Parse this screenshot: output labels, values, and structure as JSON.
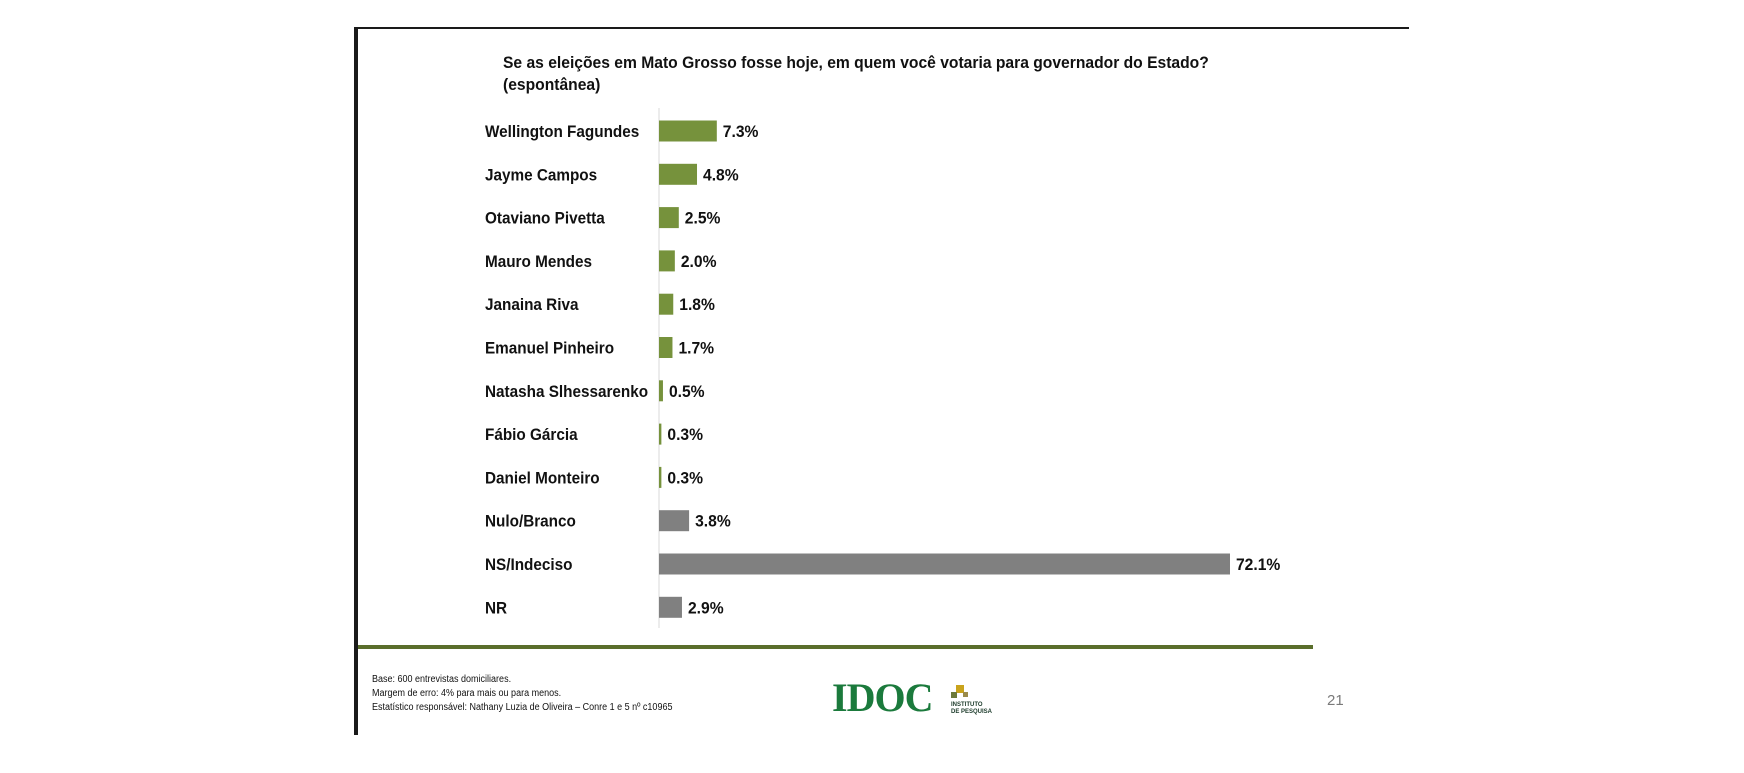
{
  "slide": {
    "page_number": "21",
    "footnotes": [
      "Base: 600 entrevistas domiciliares.",
      "Margem de erro: 4% para mais ou para menos.",
      "Estatístico responsável: Nathany Luzia de Oliveira – Conre 1 e 5 nº c10965"
    ],
    "logo": {
      "word": "IDOC",
      "sub_line1": "INSTITUTO",
      "sub_line2": "DE PESQUISA"
    },
    "colors": {
      "frame": "#1a1a1a",
      "footer_rule": "#5a6e2b",
      "logo_green": "#1b7a3c"
    }
  },
  "chart_data": {
    "type": "bar",
    "orientation": "horizontal",
    "title": "Se as eleições em Mato Grosso fosse hoje, em quem você votaria para governador do Estado?",
    "subtitle": "(espontânea)",
    "categories": [
      "Wellington Fagundes",
      "Jayme Campos",
      "Otaviano Pivetta",
      "Mauro Mendes",
      "Janaina Riva",
      "Emanuel Pinheiro",
      "Natasha Slhessarenko",
      "Fábio Gárcia",
      "Daniel Monteiro",
      "Nulo/Branco",
      "NS/Indeciso",
      "NR"
    ],
    "values": [
      7.3,
      4.8,
      2.5,
      2.0,
      1.8,
      1.7,
      0.5,
      0.3,
      0.3,
      3.8,
      72.1,
      2.9
    ],
    "value_labels": [
      "7.3%",
      "4.8%",
      "2.5%",
      "2.0%",
      "1.8%",
      "1.7%",
      "0.5%",
      "0.3%",
      "0.3%",
      "3.8%",
      "72.1%",
      "2.9%"
    ],
    "bar_colors": [
      "#76923c",
      "#76923c",
      "#76923c",
      "#76923c",
      "#76923c",
      "#76923c",
      "#76923c",
      "#76923c",
      "#76923c",
      "#808080",
      "#808080",
      "#808080"
    ],
    "xlabel": "",
    "ylabel": "",
    "xlim": [
      0,
      72.1
    ],
    "grid": false,
    "legend": "none"
  }
}
